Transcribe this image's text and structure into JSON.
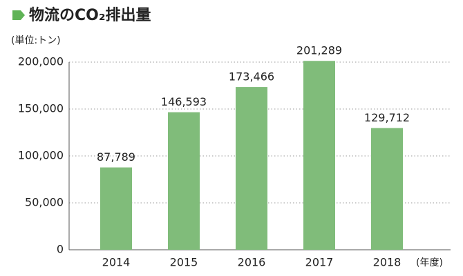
{
  "chart_data": {
    "type": "bar",
    "title": "物流のCO₂排出量",
    "y_unit": "(単位:トン)",
    "x_unit": "(年度)",
    "categories": [
      "2014",
      "2015",
      "2016",
      "2017",
      "2018"
    ],
    "values": [
      87789,
      146593,
      173466,
      201289,
      129712
    ],
    "value_labels": [
      "87,789",
      "146,593",
      "173,466",
      "201,289",
      "129,712"
    ],
    "color": "#80bc7a",
    "ylim": [
      0,
      200000
    ],
    "yticks": [
      0,
      {
        "value": 50000,
        "label": "50,000"
      },
      {
        "value": 100000,
        "label": "100,000"
      },
      {
        "value": 150000,
        "label": "150,000"
      },
      {
        "value": 200000,
        "label": "200,000"
      }
    ],
    "grid": true
  }
}
